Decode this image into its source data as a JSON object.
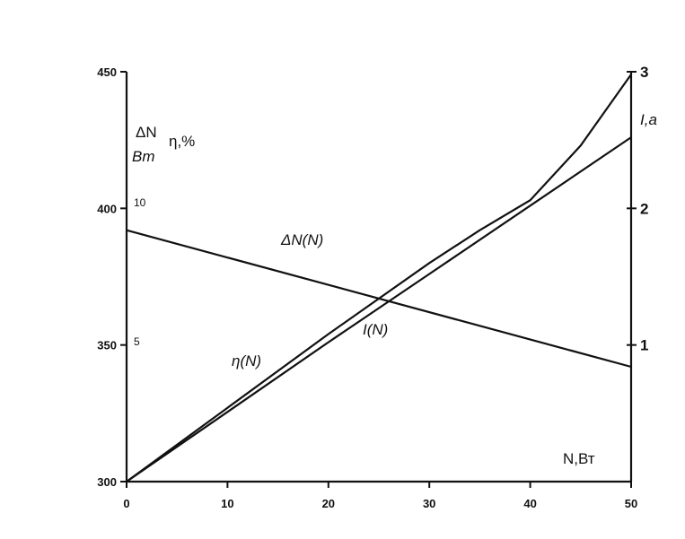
{
  "chart_data": {
    "type": "line",
    "x": {
      "label": "N,Вт",
      "ticks": [
        "0",
        "10",
        "20",
        "30",
        "40",
        "50"
      ],
      "range": [
        0,
        50
      ]
    },
    "y_left": {
      "ticks": [
        "300",
        "350",
        "400",
        "450"
      ],
      "range": [
        300,
        450
      ],
      "inner_ticks": [
        "5",
        "10"
      ],
      "label_top": "ΔN",
      "label_bottom": "Bm",
      "label_eta": "η,%"
    },
    "y_right": {
      "ticks": [
        "1",
        "2",
        "3"
      ],
      "range": [
        0,
        3
      ],
      "label": "I,a"
    },
    "series": [
      {
        "name": "ΔN(N)",
        "axis": "left",
        "x": [
          0,
          50
        ],
        "y": [
          392,
          342
        ]
      },
      {
        "name": "η(N)",
        "axis": "left",
        "x": [
          0,
          10,
          20,
          30,
          40,
          50
        ],
        "y": [
          300,
          325.5,
          351,
          376,
          401,
          426
        ]
      },
      {
        "name": "I(N)",
        "axis": "left",
        "x": [
          0,
          10,
          20,
          30,
          35,
          40,
          45,
          50
        ],
        "y": [
          300,
          327,
          354,
          380,
          392,
          403,
          423,
          449
        ]
      }
    ]
  }
}
